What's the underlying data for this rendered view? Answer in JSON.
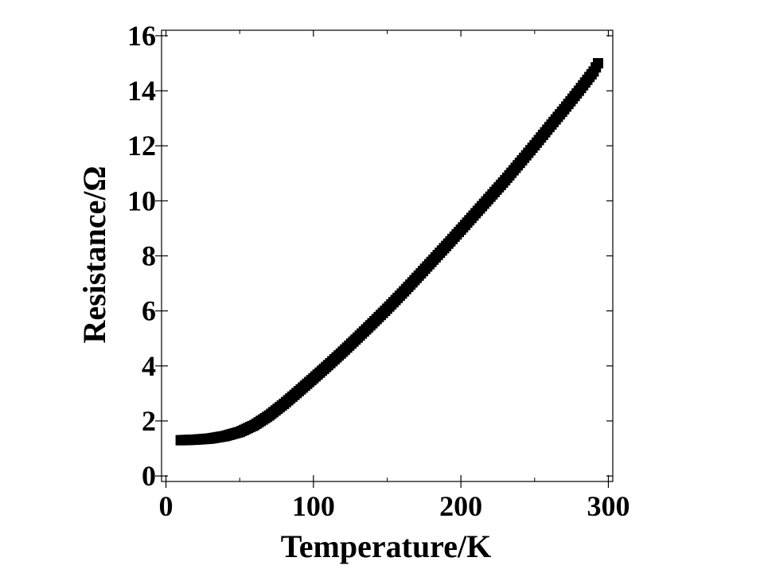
{
  "chart_data": {
    "type": "scatter",
    "xlabel": "Temperature/K",
    "ylabel": "Resistance/Ω",
    "xlim": [
      -3,
      303
    ],
    "ylim": [
      -0.2,
      16.2
    ],
    "x_ticks": [
      0,
      100,
      200,
      300
    ],
    "y_ticks": [
      0,
      2,
      4,
      6,
      8,
      10,
      12,
      14,
      16
    ],
    "x_minor_ticks": [
      50,
      150,
      250
    ],
    "grid": false,
    "legend": "none",
    "marker": "filled-square",
    "color": "#000000",
    "series": [
      {
        "x": [
          10,
          20,
          30,
          40,
          50,
          60,
          70,
          80,
          90,
          100,
          110,
          120,
          130,
          140,
          150,
          160,
          170,
          180,
          190,
          200,
          210,
          220,
          230,
          240,
          250,
          260,
          270,
          280,
          290,
          293
        ],
        "y": [
          1.3,
          1.32,
          1.36,
          1.45,
          1.6,
          1.85,
          2.2,
          2.62,
          3.08,
          3.55,
          4.03,
          4.52,
          5.03,
          5.55,
          6.08,
          6.63,
          7.2,
          7.78,
          8.36,
          8.95,
          9.55,
          10.15,
          10.75,
          11.38,
          12.02,
          12.68,
          13.33,
          14.0,
          14.7,
          15.0
        ]
      }
    ]
  }
}
